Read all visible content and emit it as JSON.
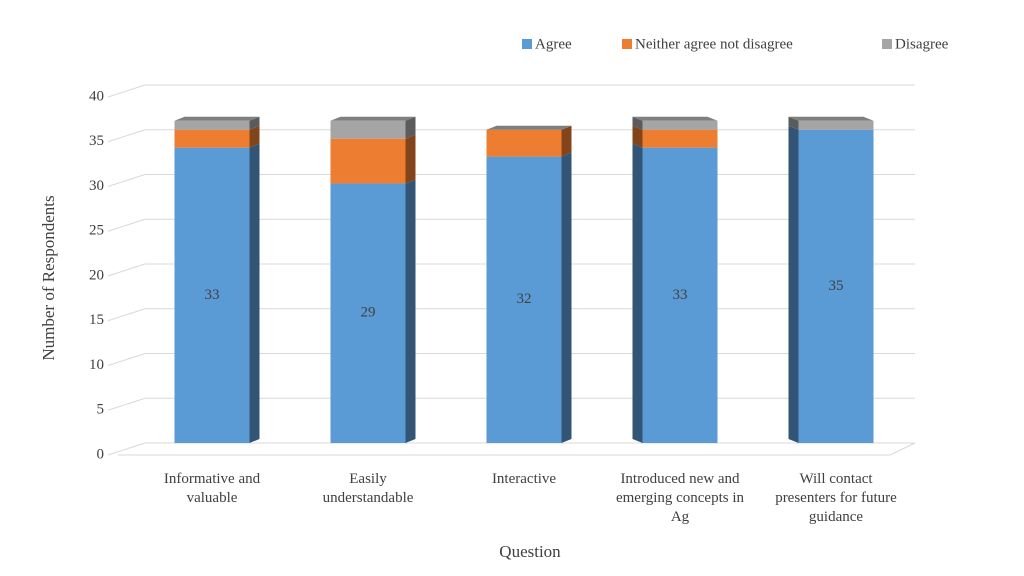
{
  "chart_data": {
    "type": "bar3d_stacked",
    "x_label": "Question",
    "y_label": "Number of Respondents",
    "categories": [
      "Informative and valuable",
      "Easily understandable",
      "Interactive",
      "Introduced new and emerging concepts in Ag",
      "Will contact presenters for future guidance"
    ],
    "series": [
      {
        "name": "Agree",
        "color": "#5b9bd5",
        "values": [
          33,
          29,
          32,
          33,
          35
        ]
      },
      {
        "name": "Neither agree not disagree",
        "color": "#ed7d31",
        "values": [
          2,
          5,
          3,
          2,
          0
        ]
      },
      {
        "name": "Disagree",
        "color": "#a5a5a5",
        "values": [
          1,
          2,
          0,
          1,
          1
        ]
      }
    ],
    "ylim": [
      0,
      40
    ],
    "yticks": [
      0,
      5,
      10,
      15,
      20,
      25,
      30,
      35,
      40
    ],
    "grid": true,
    "legend": "top-right"
  }
}
